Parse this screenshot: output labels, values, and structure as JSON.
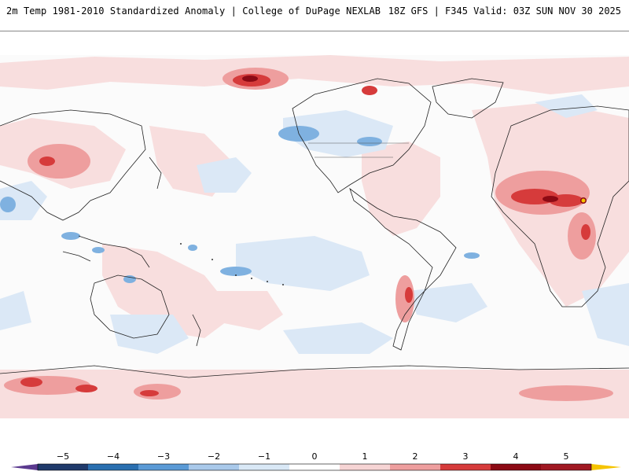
{
  "header": {
    "left": "2m Temp 1981-2010 Standardized Anomaly | College of DuPage NEXLAB",
    "right": "18Z GFS | F345 Valid: 03Z SUN NOV 30 2025"
  },
  "legend": {
    "ticks": [
      "-5",
      "-4",
      "-3",
      "-2",
      "-1",
      "0",
      "1",
      "2",
      "3",
      "4",
      "5"
    ],
    "colors": {
      "deep_purple": "#5b3a8f",
      "navy": "#1f3a6b",
      "blue": "#2a6fb0",
      "mid_blue": "#5a9ad6",
      "light_blue": "#a9c9ea",
      "pale_blue": "#d9e8f6",
      "white": "#ffffff",
      "pale_red": "#f6d4d4",
      "light_red": "#ee9e9e",
      "red": "#d63b3b",
      "dark_red": "#8c0a14",
      "yellow": "#f5c400"
    }
  }
}
